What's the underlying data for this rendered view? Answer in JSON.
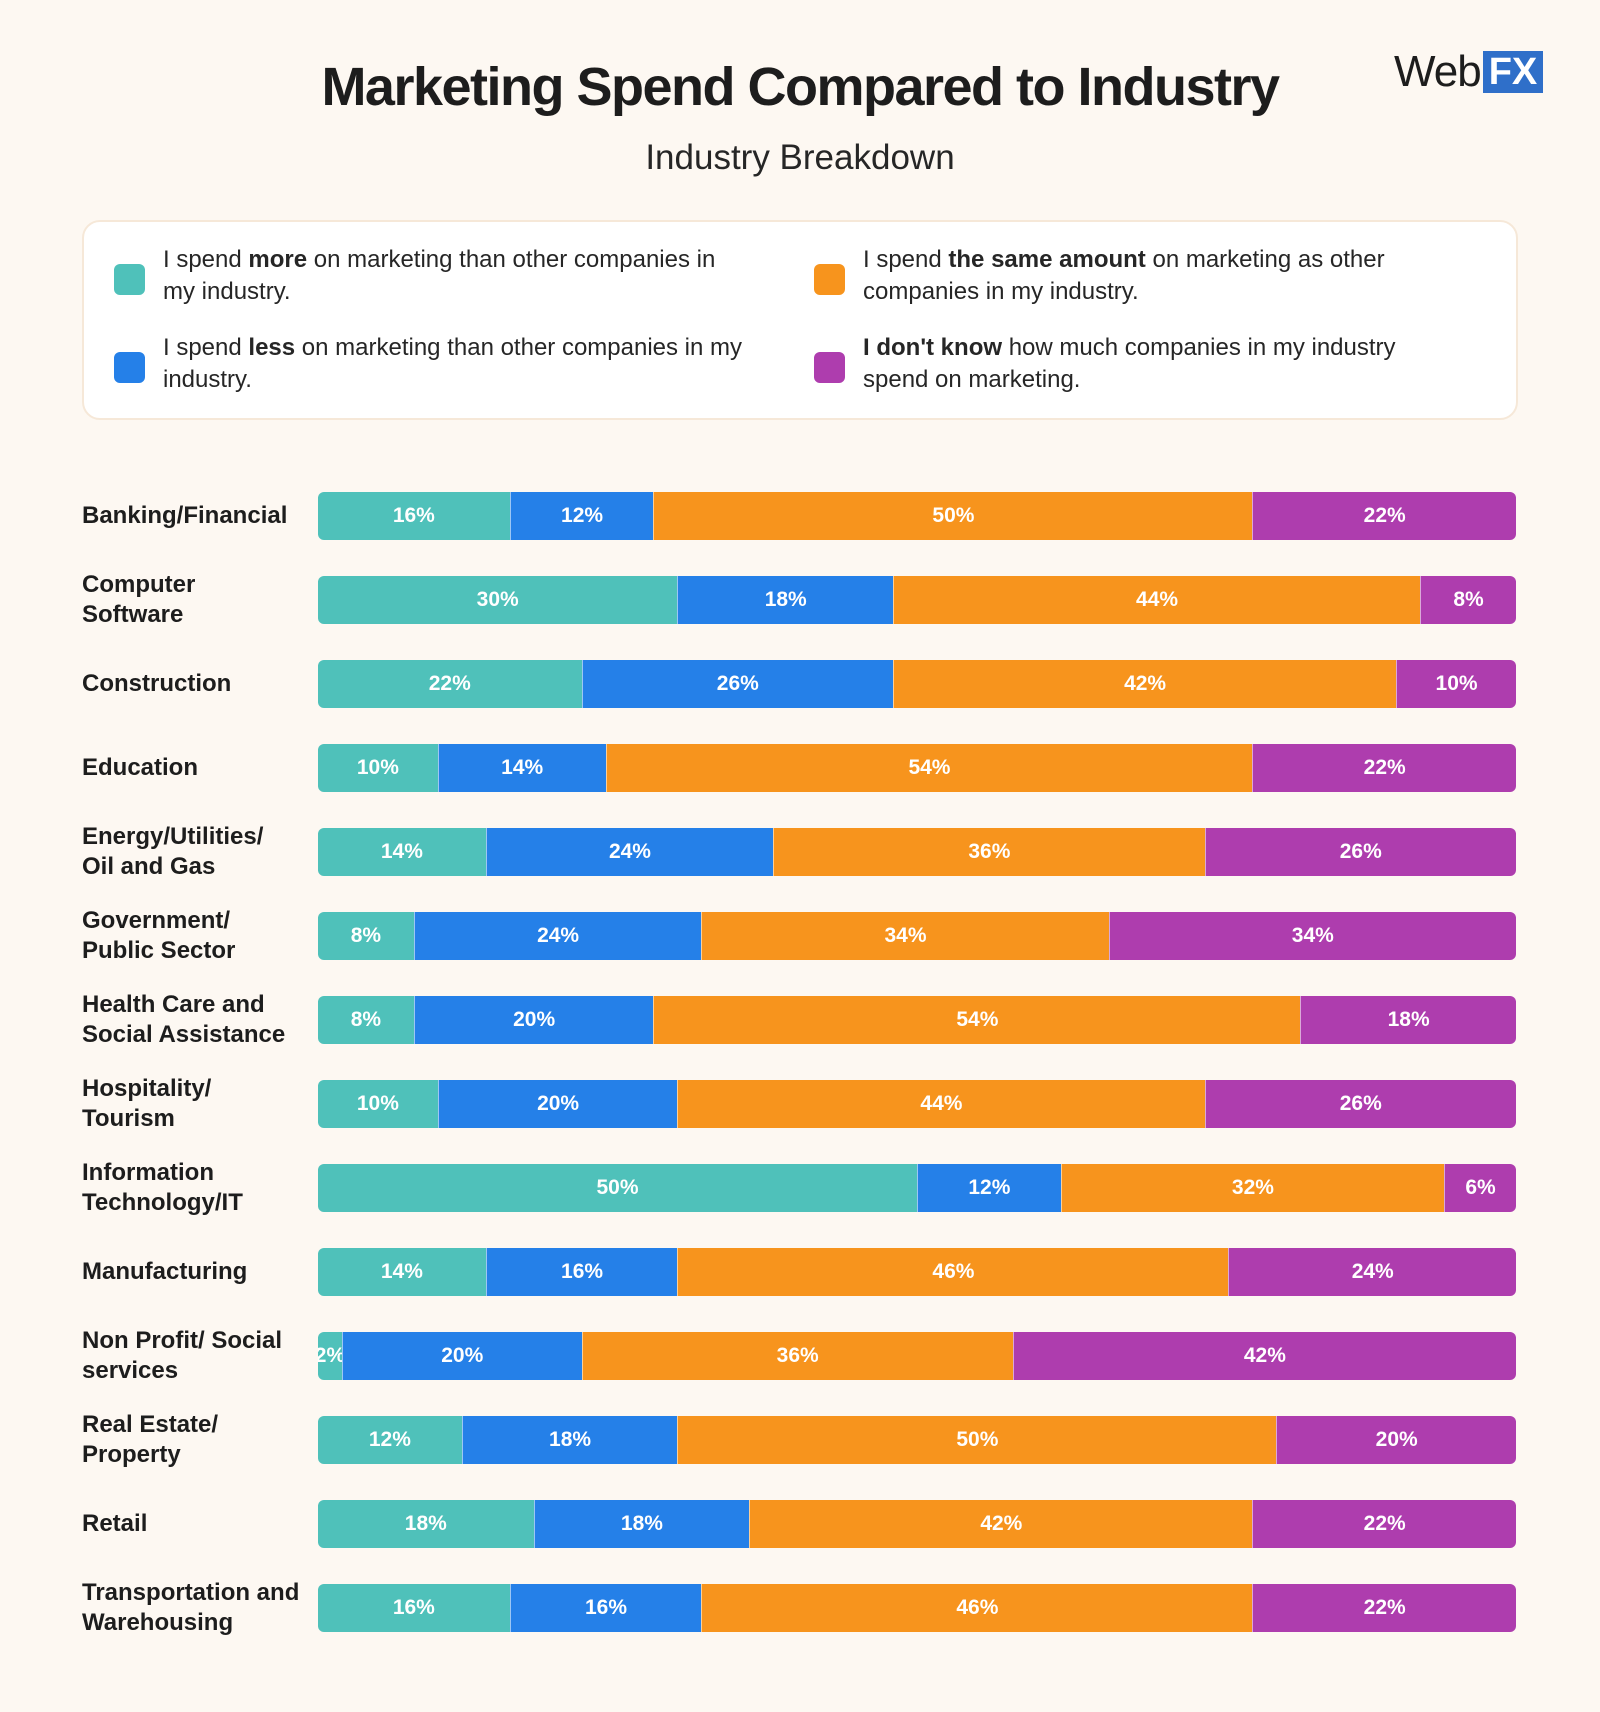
{
  "header": {
    "title": "Marketing Spend Compared to Industry",
    "subtitle": "Industry Breakdown",
    "logo_web": "Web",
    "logo_fx": "FX"
  },
  "legend": [
    {
      "key": "more",
      "color": "#4fc1ba",
      "pre": "I spend ",
      "bold": "more",
      "post": " on marketing than other companies in my industry."
    },
    {
      "key": "same",
      "color": "#f7941d",
      "pre": "I spend ",
      "bold": "the same amount",
      "post": " on marketing as other companies in my industry."
    },
    {
      "key": "less",
      "color": "#2580e8",
      "pre": "I spend ",
      "bold": "less",
      "post": " on marketing than other companies in my industry."
    },
    {
      "key": "dontknow",
      "color": "#ae3dae",
      "pre": "",
      "bold": "I don't know",
      "post": " how much companies in my industry spend on marketing."
    }
  ],
  "chart_data": {
    "type": "bar",
    "orientation": "horizontal",
    "stacked": true,
    "normalized": true,
    "title": "Marketing Spend Compared to Industry",
    "subtitle": "Industry Breakdown",
    "value_suffix": "%",
    "categories": [
      "Banking/Financial",
      "Computer Software",
      "Construction",
      "Education",
      "Energy/Utilities/ Oil and Gas",
      "Government/ Public Sector",
      "Health Care and Social Assistance",
      "Hospitality/ Tourism",
      "Information Technology/IT",
      "Manufacturing",
      "Non Profit/ Social services",
      "Real Estate/ Property",
      "Retail",
      "Transportation and Warehousing"
    ],
    "series": [
      {
        "name": "more",
        "color": "#4fc1ba",
        "values": [
          16,
          30,
          22,
          10,
          14,
          8,
          8,
          10,
          50,
          14,
          2,
          12,
          18,
          16
        ]
      },
      {
        "name": "less",
        "color": "#2580e8",
        "values": [
          12,
          18,
          26,
          14,
          24,
          24,
          20,
          20,
          12,
          16,
          20,
          18,
          18,
          16
        ]
      },
      {
        "name": "same",
        "color": "#f7941d",
        "values": [
          50,
          44,
          42,
          54,
          36,
          34,
          54,
          44,
          32,
          46,
          36,
          50,
          42,
          46
        ]
      },
      {
        "name": "dontknow",
        "color": "#ae3dae",
        "values": [
          22,
          8,
          10,
          22,
          26,
          34,
          18,
          26,
          6,
          24,
          42,
          20,
          22,
          22
        ]
      }
    ]
  }
}
